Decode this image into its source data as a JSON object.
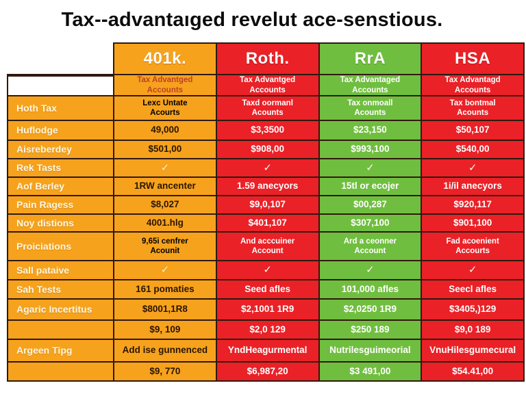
{
  "title": "Tax--advantaıged revelut ace-senstious.",
  "chart_data": {
    "type": "table",
    "title": "Tax--advantaıged revelut ace-senstious.",
    "legend_position": "none",
    "grid": "solid dark borders",
    "row_label_column_color": "#F6A21D",
    "line_color": "#2F190E",
    "columns": [
      {
        "label": "401k.",
        "color": "#F6A21D",
        "text_color": "#2B1500"
      },
      {
        "label": "Roth.",
        "color": "#EA2127",
        "text_color": "#FFFFFF"
      },
      {
        "label": "RrA",
        "color": "#70BE3F",
        "text_color": "#FFFFFF"
      },
      {
        "label": "HSA",
        "color": "#EA2127",
        "text_color": "#FFFFFF"
      }
    ],
    "check_icon": "✓",
    "rows": [
      {
        "label": "",
        "cells": [
          "Tax Advantged\nAccounts",
          "Tax Advantged\nAccounts",
          "Tax Advantaged\nAccounts",
          "Tax Advantagd\nAccounts"
        ]
      },
      {
        "label": "Hoth Tax",
        "cells": [
          "Lexc Untate\nAcourts",
          "Taxd oormanl\nAcounts",
          "Tax onmoall\nAcounts",
          "Tax bontmal\nAcounts"
        ]
      },
      {
        "label": "Huflodge",
        "cells": [
          "49,000",
          "$3,3500",
          "$23,150",
          "$50,107"
        ]
      },
      {
        "label": "Aisreberdey",
        "cells": [
          "$501,00",
          "$908,00",
          "$993,100",
          "$540,00"
        ]
      },
      {
        "label": "Rek Tasts",
        "cells": [
          "✓",
          "✓",
          "✓",
          "✓"
        ]
      },
      {
        "label": "Aof Berley",
        "cells": [
          "1RW ancenter",
          "1.59 anecyors",
          "15tl or ecojer",
          "1i/il anecyors"
        ]
      },
      {
        "label": "Pain Ragess",
        "cells": [
          "$8,027",
          "$9,0,107",
          "$00,287",
          "$920,117"
        ]
      },
      {
        "label": "Noy distions",
        "cells": [
          "4001.hlg",
          "$401,107",
          "$307,100",
          "$901,100"
        ]
      },
      {
        "label": "Proiciations",
        "cells": [
          "9,65i cenfrer\nAcounit",
          "And acccuiner\nAccount",
          "Ard a ceonner\nAccount",
          "Fad acoenient\nAccourts"
        ]
      },
      {
        "label": "Sall pataive",
        "cells": [
          "✓",
          "✓",
          "✓",
          "✓"
        ]
      },
      {
        "label": "Sah Tests",
        "cells": [
          "161 pomaties",
          "Seed afles",
          "101,000 afles",
          "Seecl afles"
        ]
      },
      {
        "label": "Agaric Incertitus",
        "cells": [
          "$8001,1R8",
          "$2,1001 1R9",
          "$2,0250 1R9",
          "$3405,)129"
        ]
      },
      {
        "label": "",
        "cells": [
          "$9, 109",
          "$2,0 129",
          "$250 189",
          "$9,0 189"
        ]
      },
      {
        "label": "Argeen Tipg",
        "cells": [
          "Add ise gunnenced",
          "YndHeagurmental",
          "Nutrilesguimeorial",
          "VnuHilesgumecural"
        ]
      },
      {
        "label": "",
        "cells": [
          "$9, 770",
          "$6,987,20",
          "$3 491,00",
          "$54.41,00"
        ]
      }
    ]
  }
}
